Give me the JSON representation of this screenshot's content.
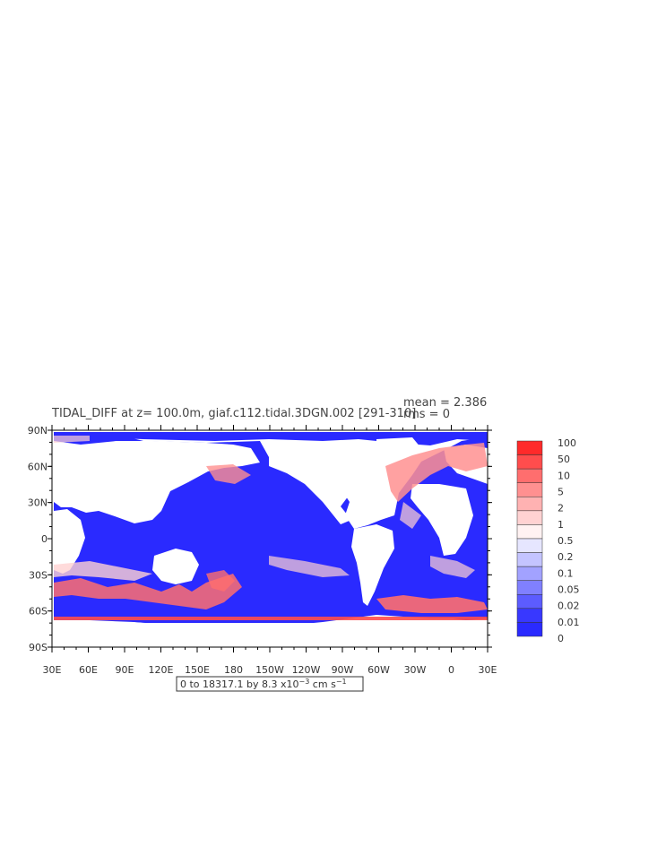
{
  "header": {
    "title": "TIDAL_DIFF at z= 100.0m, giaf.c112.tidal.3DGN.002 [291-310]",
    "mean": "mean = 2.386",
    "rms": "rms = 0"
  },
  "axes": {
    "lat_ticks": [
      "90N",
      "60N",
      "30N",
      "0",
      "30S",
      "60S",
      "90S"
    ],
    "lon_ticks": [
      "30E",
      "60E",
      "90E",
      "120E",
      "150E",
      "180",
      "150W",
      "120W",
      "90W",
      "60W",
      "30W",
      "0",
      "30E"
    ]
  },
  "range_box": {
    "text": "0 to 18317.1 by 8.3 x10",
    "exponent": "−3",
    "unit": " cm s",
    "unit_exponent": "−1"
  },
  "colorbar": {
    "levels": [
      "100",
      "50",
      "10",
      "5",
      "2",
      "1",
      "0.5",
      "0.2",
      "0.1",
      "0.05",
      "0.02",
      "0.01",
      "0"
    ],
    "colors": [
      "#ff2a2a",
      "#ff4d4d",
      "#ff6e6e",
      "#ff9090",
      "#ffb2b2",
      "#ffd2d2",
      "#fff2f2",
      "#e6e6ff",
      "#c4c4ff",
      "#a2a2ff",
      "#8080ff",
      "#5c5cff",
      "#3838ff",
      "#2a2aff"
    ]
  },
  "colors": {
    "ocean": "#2a2aff",
    "land": "#ffffff",
    "frame": "#000000"
  }
}
